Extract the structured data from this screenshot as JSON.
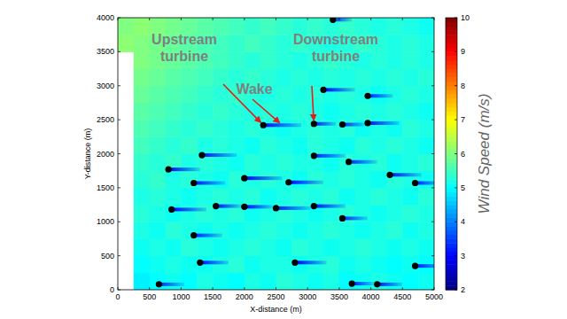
{
  "chart_data": {
    "type": "heatmap",
    "x_label": "X-distance (m)",
    "y_label": "Y-distance (m)",
    "xlim": [
      0,
      5000
    ],
    "ylim": [
      0,
      4000
    ],
    "xticks": [
      0,
      500,
      1000,
      1500,
      2000,
      2500,
      3000,
      3500,
      4000,
      4500,
      5000
    ],
    "yticks": [
      0,
      500,
      1000,
      1500,
      2000,
      2500,
      3000,
      3500,
      4000
    ],
    "colorbar_label": "Wind Speed (m/s)",
    "color_range": [
      2,
      10
    ],
    "color_ticks": [
      2,
      3,
      4,
      5,
      6,
      7,
      8,
      9,
      10
    ],
    "annotations": [
      "Upstream turbine",
      "Wake",
      "Downstream turbine"
    ],
    "cells": [
      [
        null,
        4.9,
        5.0,
        5.1,
        5.0,
        5.2,
        5.1,
        5.0,
        5.2,
        5.1,
        5.3,
        5.2,
        5.1,
        5.2,
        5.0,
        5.1,
        5.2,
        5.1,
        5.0,
        5.1
      ],
      [
        null,
        5.0,
        5.1,
        5.2,
        5.1,
        5.1,
        5.2,
        5.3,
        5.1,
        5.2,
        5.2,
        5.1,
        5.2,
        5.3,
        5.1,
        5.2,
        5.1,
        5.0,
        5.1,
        5.0
      ],
      [
        null,
        5.1,
        5.2,
        5.1,
        5.3,
        5.2,
        5.1,
        5.2,
        5.3,
        5.2,
        5.1,
        5.3,
        5.2,
        5.1,
        5.2,
        5.3,
        5.2,
        5.1,
        5.2,
        5.1
      ],
      [
        null,
        5.2,
        5.1,
        5.3,
        5.2,
        5.1,
        5.2,
        5.1,
        5.2,
        5.3,
        5.2,
        5.1,
        5.2,
        5.3,
        5.2,
        5.1,
        5.2,
        5.3,
        5.1,
        5.2
      ],
      [
        null,
        5.3,
        5.2,
        5.1,
        5.2,
        5.3,
        5.2,
        5.3,
        5.1,
        5.2,
        5.3,
        5.2,
        5.1,
        5.2,
        5.3,
        5.2,
        5.1,
        5.2,
        5.3,
        5.2
      ],
      [
        null,
        5.2,
        5.3,
        5.2,
        5.1,
        5.2,
        5.3,
        5.2,
        5.3,
        5.1,
        5.2,
        5.3,
        5.2,
        5.3,
        5.1,
        5.2,
        5.3,
        5.2,
        5.1,
        5.3
      ],
      [
        null,
        5.3,
        5.4,
        5.2,
        5.3,
        5.2,
        5.1,
        5.3,
        5.2,
        5.3,
        5.2,
        5.1,
        5.3,
        5.2,
        5.3,
        5.2,
        5.1,
        5.3,
        5.2,
        5.1
      ],
      [
        null,
        5.4,
        5.3,
        5.4,
        5.2,
        5.3,
        5.2,
        5.1,
        5.3,
        5.2,
        5.3,
        5.2,
        5.2,
        5.1,
        5.3,
        5.2,
        5.3,
        5.1,
        5.2,
        5.3
      ],
      [
        null,
        5.5,
        5.4,
        5.3,
        5.4,
        5.2,
        5.3,
        5.2,
        5.1,
        5.3,
        5.2,
        5.1,
        5.3,
        5.2,
        5.1,
        5.3,
        5.2,
        5.3,
        5.2,
        5.1
      ],
      [
        null,
        5.6,
        5.5,
        5.4,
        5.3,
        5.4,
        5.3,
        5.2,
        5.3,
        5.2,
        5.1,
        5.2,
        5.3,
        5.2,
        5.3,
        5.1,
        5.2,
        5.1,
        5.3,
        5.2
      ],
      [
        null,
        5.7,
        5.6,
        5.5,
        5.4,
        5.3,
        5.4,
        5.3,
        5.2,
        5.3,
        5.2,
        5.3,
        5.2,
        5.1,
        5.2,
        5.3,
        5.2,
        5.3,
        5.2,
        5.1
      ],
      [
        null,
        5.8,
        5.7,
        5.6,
        5.5,
        5.4,
        5.3,
        5.4,
        5.3,
        5.2,
        5.3,
        5.2,
        5.3,
        5.2,
        5.3,
        5.2,
        5.1,
        5.2,
        5.3,
        5.2
      ],
      [
        null,
        5.9,
        5.8,
        5.7,
        5.6,
        5.5,
        5.4,
        5.3,
        5.4,
        5.3,
        5.2,
        5.3,
        5.2,
        5.3,
        5.2,
        5.3,
        5.2,
        5.3,
        5.2,
        5.3
      ],
      [
        null,
        6.0,
        5.9,
        5.8,
        5.7,
        5.6,
        5.5,
        5.4,
        5.3,
        5.4,
        5.3,
        5.2,
        5.3,
        5.4,
        5.3,
        5.2,
        5.3,
        5.2,
        5.3,
        5.2
      ],
      [
        6.1,
        6.0,
        5.9,
        5.8,
        5.7,
        5.6,
        5.5,
        5.4,
        5.5,
        5.4,
        5.3,
        5.4,
        5.3,
        5.2,
        5.3,
        5.4,
        5.3,
        5.2,
        5.3,
        5.2
      ],
      [
        6.0,
        6.1,
        6.0,
        5.9,
        5.8,
        5.7,
        5.6,
        5.5,
        5.4,
        5.5,
        5.4,
        5.3,
        5.4,
        5.3,
        5.4,
        5.3,
        5.2,
        5.3,
        5.2,
        5.1
      ]
    ],
    "turbines": {
      "x": [
        2300,
        3100,
        3550,
        3950,
        3250,
        3950,
        3400,
        1330,
        3100,
        3650,
        800,
        4300,
        2000,
        1200,
        2700,
        4700,
        1550,
        2000,
        2500,
        3100,
        850,
        3550,
        1200,
        1300,
        2800,
        4700,
        650,
        3700,
        4100
      ],
      "y": [
        2420,
        2440,
        2430,
        2450,
        2940,
        2850,
        3970,
        1980,
        1970,
        1880,
        1770,
        1690,
        1640,
        1570,
        1580,
        1570,
        1230,
        1220,
        1200,
        1230,
        1180,
        1050,
        800,
        400,
        400,
        350,
        80,
        90,
        80
      ],
      "wake_lengths": [
        600,
        350,
        350,
        500,
        500,
        400,
        300,
        550,
        500,
        450,
        500,
        500,
        600,
        500,
        550,
        400,
        400,
        450,
        550,
        500,
        550,
        400,
        450,
        450,
        500,
        500,
        400,
        350,
        400
      ],
      "wake_speeds": [
        3.0,
        3.2,
        3.3,
        3.1,
        3.0,
        3.2,
        3.4,
        3.1,
        3.2,
        3.3,
        3.0,
        3.1,
        2.9,
        3.1,
        3.0,
        3.2,
        3.1,
        3.0,
        3.2,
        3.1,
        3.0,
        3.3,
        3.2,
        3.1,
        3.0,
        3.2,
        3.3,
        3.2,
        3.1
      ]
    }
  }
}
